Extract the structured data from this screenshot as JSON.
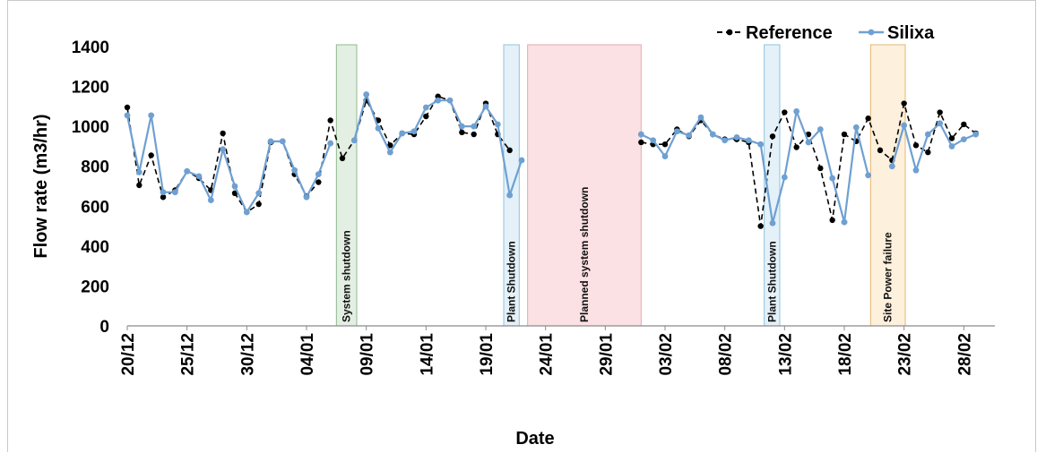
{
  "chart_data": {
    "type": "line",
    "title": "",
    "xlabel": "Date",
    "ylabel": "Flow rate (m3/hr)",
    "ylim": [
      0,
      1400
    ],
    "yticks": [
      "0",
      "200",
      "400",
      "600",
      "800",
      "1000",
      "1200",
      "1400"
    ],
    "x_start": "20/12",
    "x_day_count": 73,
    "xticks": [
      {
        "day": 0,
        "label": "20/12"
      },
      {
        "day": 5,
        "label": "25/12"
      },
      {
        "day": 10,
        "label": "30/12"
      },
      {
        "day": 15,
        "label": "04/01"
      },
      {
        "day": 20,
        "label": "09/01"
      },
      {
        "day": 25,
        "label": "14/01"
      },
      {
        "day": 30,
        "label": "19/01"
      },
      {
        "day": 35,
        "label": "24/01"
      },
      {
        "day": 40,
        "label": "29/01"
      },
      {
        "day": 45,
        "label": "03/02"
      },
      {
        "day": 50,
        "label": "08/02"
      },
      {
        "day": 55,
        "label": "13/02"
      },
      {
        "day": 60,
        "label": "18/02"
      },
      {
        "day": 65,
        "label": "23/02"
      },
      {
        "day": 70,
        "label": "28/02"
      }
    ],
    "legend_position": "top-right",
    "grid": false,
    "series": [
      {
        "name": "Reference",
        "color": "#000000",
        "style": "dashed",
        "segments": [
          {
            "x": [
              0,
              1,
              2,
              3,
              4,
              5,
              6,
              7,
              8,
              9,
              10,
              11,
              12,
              13,
              14,
              15,
              16,
              17,
              18,
              19,
              20,
              21,
              22,
              23,
              24,
              25,
              26,
              27,
              28,
              29,
              30,
              31,
              32
            ],
            "y": [
              1095,
              705,
              855,
              645,
              680,
              775,
              740,
              680,
              965,
              665,
              570,
              610,
              920,
              925,
              760,
              650,
              720,
              1030,
              840,
              930,
              1130,
              1030,
              905,
              965,
              960,
              1050,
              1150,
              1130,
              970,
              960,
              1115,
              960,
              880
            ]
          },
          {
            "x": [
              43,
              44,
              45,
              46,
              47,
              48,
              49,
              50,
              51,
              52,
              53,
              54,
              55,
              56,
              57,
              58,
              59,
              60,
              61,
              62,
              63,
              64,
              65,
              66,
              67,
              68,
              69,
              70,
              71
            ],
            "y": [
              920,
              910,
              910,
              985,
              950,
              1030,
              960,
              935,
              935,
              920,
              500,
              950,
              1070,
              895,
              960,
              790,
              530,
              960,
              925,
              1040,
              880,
              830,
              1115,
              905,
              870,
              1070,
              940,
              1010,
              965
            ]
          }
        ]
      },
      {
        "name": "Silixa",
        "color": "#6fa0d2",
        "style": "solid",
        "segments": [
          {
            "x": [
              0,
              1,
              2,
              3,
              4,
              5,
              6,
              7,
              8,
              9,
              10,
              11,
              12,
              13,
              14,
              15,
              16,
              17
            ],
            "y": [
              1055,
              770,
              1055,
              670,
              670,
              775,
              750,
              630,
              885,
              700,
              570,
              665,
              925,
              925,
              780,
              645,
              760,
              915
            ]
          },
          {
            "x": [
              19,
              20,
              21,
              22,
              23,
              24,
              25,
              26,
              27,
              28,
              29,
              30,
              31,
              32
            ],
            "y": [
              930,
              1160,
              990,
              870,
              965,
              975,
              1095,
              1130,
              1130,
              1000,
              1000,
              1100,
              1010,
              655
            ]
          },
          {
            "x": [
              32,
              33
            ],
            "y": [
              655,
              830
            ]
          },
          {
            "x": [
              43,
              44,
              45,
              46,
              47,
              48,
              49,
              50,
              51,
              52,
              53,
              54,
              55,
              56,
              57,
              58,
              59,
              60
            ],
            "y": [
              960,
              930,
              850,
              975,
              955,
              1045,
              960,
              930,
              945,
              930,
              910,
              515,
              745,
              1075,
              920,
              985,
              740,
              520
            ]
          },
          {
            "x": [
              60,
              61,
              62
            ],
            "y": [
              520,
              995,
              755
            ]
          },
          {
            "x": [
              64,
              65,
              66,
              67,
              68,
              69,
              70,
              71
            ],
            "y": [
              800,
              1005,
              780,
              960,
              1015,
              900,
              935,
              960
            ]
          }
        ]
      }
    ],
    "annotations": [
      {
        "label": "System shutdown",
        "x_start": 17.5,
        "x_end": 19.2,
        "color": "#e3efe3",
        "stroke": "#8fb88f"
      },
      {
        "label": "Plant Shutdown",
        "x_start": 31.5,
        "x_end": 32.8,
        "color": "#e4f1f8",
        "stroke": "#8fc3dc"
      },
      {
        "label": "Planned system shutdown",
        "x_start": 33.5,
        "x_end": 43.0,
        "color": "#fbe1e3",
        "stroke": "#e6a8ad"
      },
      {
        "label": "Plant Shutdown",
        "x_start": 53.3,
        "x_end": 54.6,
        "color": "#e4f1f8",
        "stroke": "#8fc3dc"
      },
      {
        "label": "Site Power failure",
        "x_start": 62.2,
        "x_end": 65.1,
        "color": "#fdf0dc",
        "stroke": "#e3b870"
      }
    ]
  }
}
